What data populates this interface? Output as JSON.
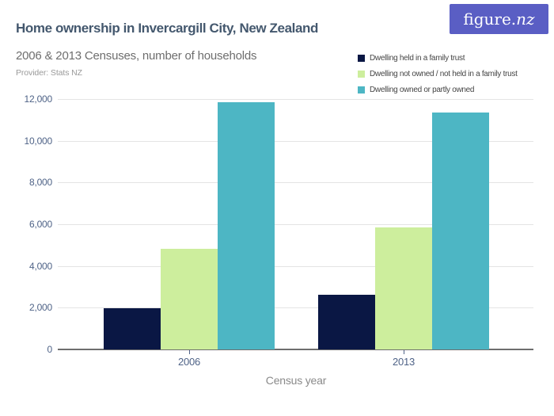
{
  "header": {
    "title": "Home ownership in Invercargill City, New Zealand",
    "subtitle": "2006 & 2013 Censuses, number of households",
    "provider": "Provider: Stats NZ",
    "logo": {
      "text_regular": "figure.",
      "text_italic": "nz"
    }
  },
  "colors": {
    "title": "#44586e",
    "subtitle": "#6e6e6e",
    "provider": "#9a9a9a",
    "logo_bg": "#5a5ec4",
    "logo_text": "#ffffff",
    "axis_label": "#4f6387",
    "x_axis_title": "#8a8a8a",
    "gridline": "#e4e4e4",
    "axis_line": "#6e6e6e"
  },
  "chart_data": {
    "type": "bar",
    "title": "Home ownership in Invercargill City, New Zealand",
    "subtitle": "2006 & 2013 Censuses, number of households",
    "categories": [
      "2006",
      "2013"
    ],
    "series": [
      {
        "name": "Dwelling held in a family trust",
        "color": "#0a1744",
        "values": [
          1980,
          2620
        ]
      },
      {
        "name": "Dwelling not owned / not held in a family trust",
        "color": "#cdee9d",
        "values": [
          4820,
          5850
        ]
      },
      {
        "name": "Dwelling owned or partly owned",
        "color": "#4db6c4",
        "values": [
          11850,
          11350
        ]
      }
    ],
    "xlabel": "Census year",
    "ylabel": "",
    "ylim": [
      0,
      12000
    ],
    "ytick_step": 2000,
    "yticks": [
      "0",
      "2,000",
      "4,000",
      "6,000",
      "8,000",
      "10,000",
      "12,000"
    ],
    "grid": true,
    "legend_position": "top-right"
  }
}
